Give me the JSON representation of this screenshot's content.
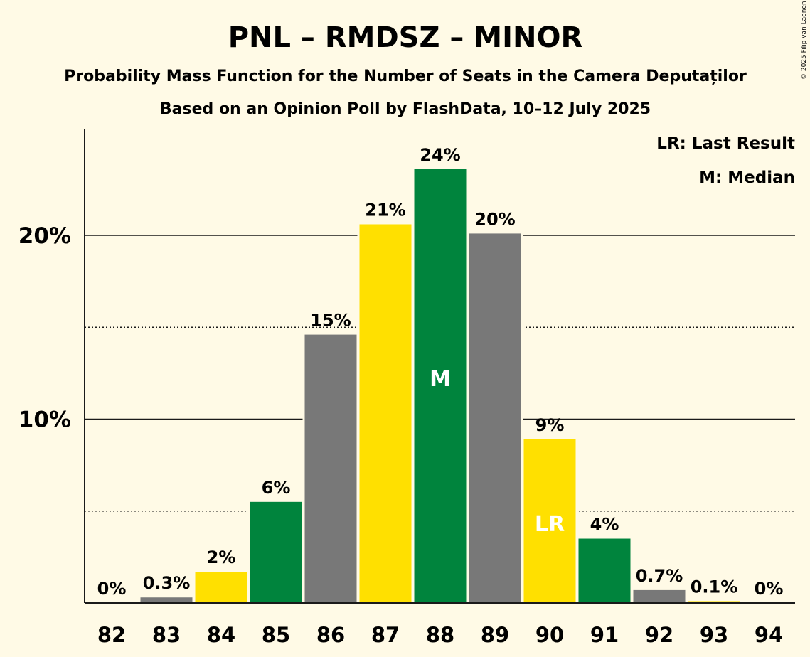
{
  "header": {
    "title": "PNL – RMDSZ – MINOR",
    "subtitle1": "Probability Mass Function for the Number of Seats in the Camera Deputaților",
    "subtitle2": "Based on an Opinion Poll by FlashData, 10–12 July 2025"
  },
  "legend": {
    "last_result": "LR: Last Result",
    "median": "M: Median"
  },
  "copyright": "© 2025 Filip van Laenen",
  "colors": {
    "background": "#fffae6",
    "green": "#00843d",
    "yellow": "#ffe000",
    "grey": "#787878",
    "text": "#1a1a1a"
  },
  "chart_data": {
    "type": "bar",
    "categories": [
      "82",
      "83",
      "84",
      "85",
      "86",
      "87",
      "88",
      "89",
      "90",
      "91",
      "92",
      "93",
      "94"
    ],
    "values": [
      0,
      0.3,
      1.7,
      5.5,
      14.6,
      20.6,
      23.6,
      20.1,
      8.9,
      3.5,
      0.7,
      0.1,
      0
    ],
    "labels": [
      "0%",
      "0.3%",
      "2%",
      "6%",
      "15%",
      "21%",
      "24%",
      "20%",
      "9%",
      "4%",
      "0.7%",
      "0.1%",
      "0%"
    ],
    "bar_colors": [
      "grey",
      "grey",
      "yellow",
      "green",
      "grey",
      "yellow",
      "green",
      "grey",
      "yellow",
      "green",
      "grey",
      "yellow",
      "green"
    ],
    "yticks": [
      {
        "value": 10,
        "label": "10%"
      },
      {
        "value": 20,
        "label": "20%"
      }
    ],
    "minor_gridlines": [
      5,
      15
    ],
    "ylim": [
      0,
      25.7
    ],
    "median": {
      "category": "88",
      "label": "M"
    },
    "last_result": {
      "category": "90",
      "label": "LR"
    },
    "legend_position": "top-right",
    "xlabel": "",
    "ylabel": ""
  }
}
